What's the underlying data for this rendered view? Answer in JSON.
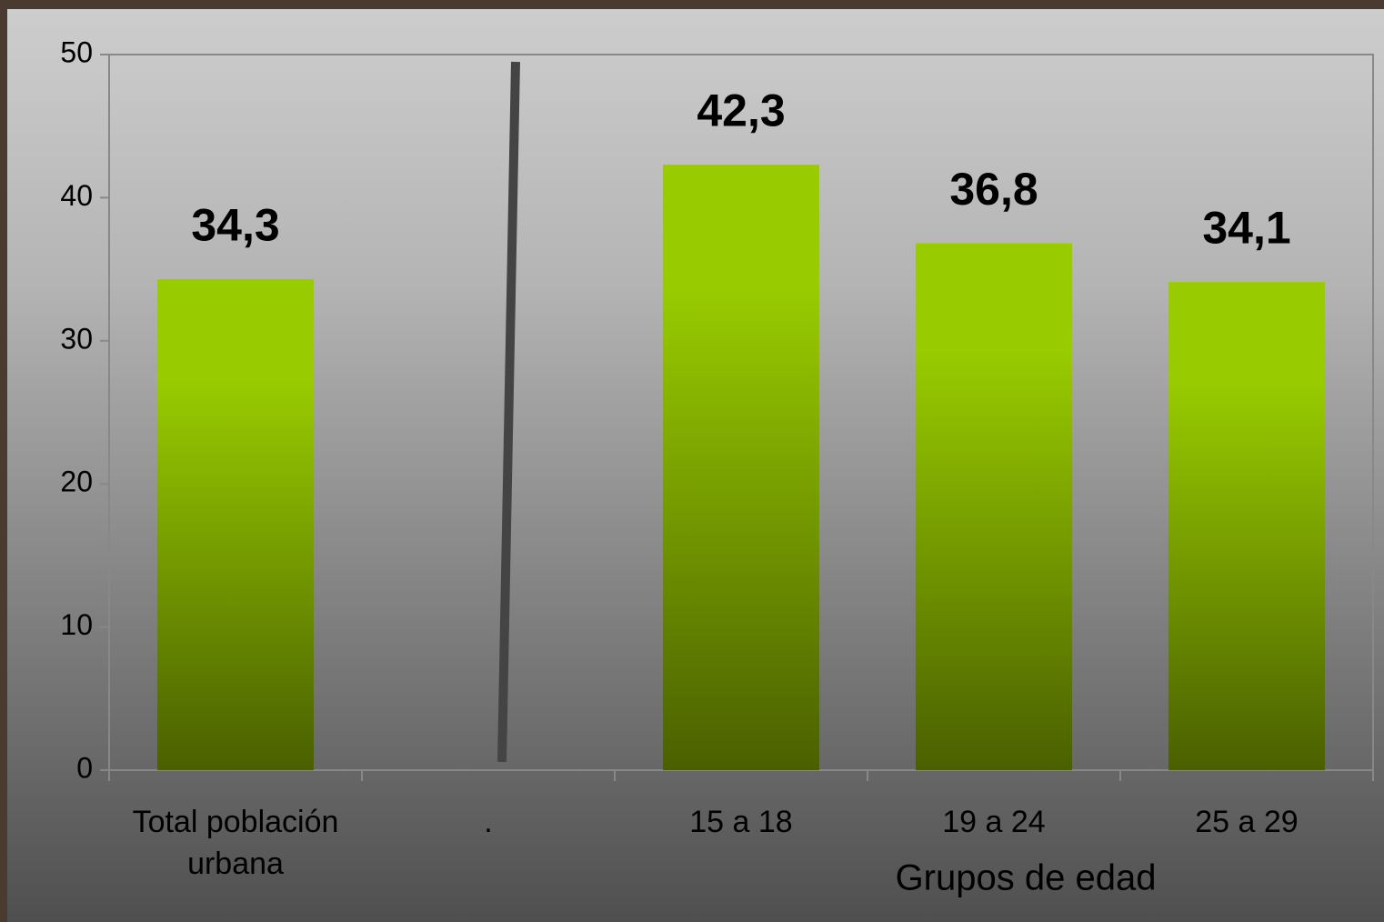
{
  "chart_data": {
    "type": "bar",
    "categories": [
      "Total población urbana",
      ".",
      "15 a 18",
      "19 a 24",
      "25 a 29"
    ],
    "values": [
      34.3,
      null,
      42.3,
      36.8,
      34.1
    ],
    "value_labels": [
      "34,3",
      null,
      "42,3",
      "36,8",
      "34,1"
    ],
    "color": "#99cc00",
    "x_label": "Grupos de edad",
    "ylim": [
      0,
      50
    ],
    "yticks": [
      0,
      10,
      20,
      30,
      40,
      50
    ],
    "grid": false
  }
}
